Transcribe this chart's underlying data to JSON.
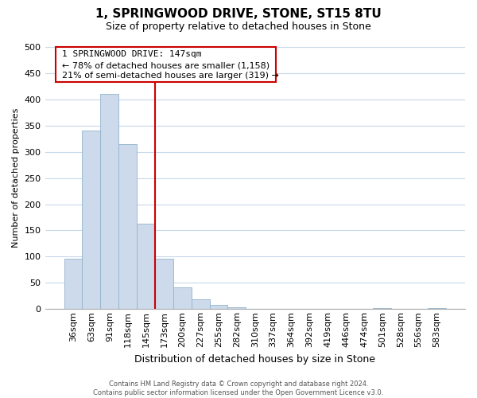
{
  "title": "1, SPRINGWOOD DRIVE, STONE, ST15 8TU",
  "subtitle": "Size of property relative to detached houses in Stone",
  "xlabel": "Distribution of detached houses by size in Stone",
  "ylabel": "Number of detached properties",
  "bar_labels": [
    "36sqm",
    "63sqm",
    "91sqm",
    "118sqm",
    "145sqm",
    "173sqm",
    "200sqm",
    "227sqm",
    "255sqm",
    "282sqm",
    "310sqm",
    "337sqm",
    "364sqm",
    "392sqm",
    "419sqm",
    "446sqm",
    "474sqm",
    "501sqm",
    "528sqm",
    "556sqm",
    "583sqm"
  ],
  "bar_values": [
    96,
    340,
    411,
    315,
    163,
    96,
    42,
    19,
    8,
    3,
    1,
    0,
    0,
    0,
    0,
    0,
    0,
    2,
    0,
    0,
    2
  ],
  "bar_color": "#cddaeb",
  "bar_edge_color": "#93b3cc",
  "property_line_color": "#cc0000",
  "property_line_bar_index": 4,
  "annotation_title": "1 SPRINGWOOD DRIVE: 147sqm",
  "annotation_line1": "← 78% of detached houses are smaller (1,158)",
  "annotation_line2": "21% of semi-detached houses are larger (319) →",
  "annotation_box_color": "#ffffff",
  "annotation_box_edge": "#cc0000",
  "ylim": [
    0,
    500
  ],
  "yticks": [
    0,
    50,
    100,
    150,
    200,
    250,
    300,
    350,
    400,
    450,
    500
  ],
  "footer1": "Contains HM Land Registry data © Crown copyright and database right 2024.",
  "footer2": "Contains public sector information licensed under the Open Government Licence v3.0.",
  "background_color": "#ffffff",
  "grid_color": "#c8d8e8",
  "title_fontsize": 11,
  "subtitle_fontsize": 9,
  "xlabel_fontsize": 9,
  "ylabel_fontsize": 8,
  "tick_fontsize": 8,
  "ann_title_fontsize": 8,
  "ann_text_fontsize": 8
}
